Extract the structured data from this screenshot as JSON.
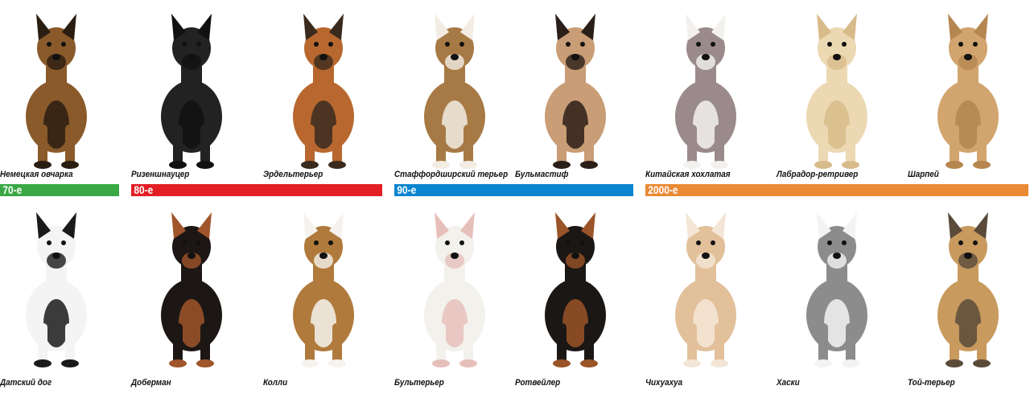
{
  "decades": [
    {
      "label": "70-е",
      "color": "#3aa845"
    },
    {
      "label": "80-е",
      "color": "#e31e24"
    },
    {
      "label": "90-е",
      "color": "#0a85cf"
    },
    {
      "label": "2000-е",
      "color": "#ea8a35"
    }
  ],
  "top_row": [
    {
      "name": "Немецкая овчарка",
      "color": "#8a5a2b",
      "accent": "#2a1d12"
    },
    {
      "name": "Ризеншнауцер",
      "color": "#222222",
      "accent": "#111111"
    },
    {
      "name": "Эрдельтерьер",
      "color": "#b8682f",
      "accent": "#3a2a1e"
    },
    {
      "name": "Стаффордширский терьер",
      "color": "#a77a45",
      "accent": "#f2ece3"
    },
    {
      "name": "Бульмастиф",
      "color": "#c99d76",
      "accent": "#2b1f19"
    },
    {
      "name": "Китайская хохлатая",
      "color": "#9a8a8c",
      "accent": "#f3f1ee"
    },
    {
      "name": "Лабрадор-ретривер",
      "color": "#ecd9b3",
      "accent": "#d8bb8a"
    },
    {
      "name": "Шарпей",
      "color": "#d2a56e",
      "accent": "#b58650"
    }
  ],
  "bottom_row": [
    {
      "name": "Датский дог",
      "color": "#f4f4f4",
      "accent": "#1a1a1a"
    },
    {
      "name": "Доберман",
      "color": "#1c1714",
      "accent": "#a0552a"
    },
    {
      "name": "Колли",
      "color": "#b07a3c",
      "accent": "#f6f3ee"
    },
    {
      "name": "Бультерьер",
      "color": "#f3f1ec",
      "accent": "#e6bfbb"
    },
    {
      "name": "Ротвейлер",
      "color": "#1b1715",
      "accent": "#9a5428"
    },
    {
      "name": "Чихуахуа",
      "color": "#e2c09a",
      "accent": "#f3e6d6"
    },
    {
      "name": "Хаски",
      "color": "#8c8c8c",
      "accent": "#f3f3f3"
    },
    {
      "name": "Той-терьер",
      "color": "#c99a5e",
      "accent": "#5a4a3a"
    }
  ]
}
